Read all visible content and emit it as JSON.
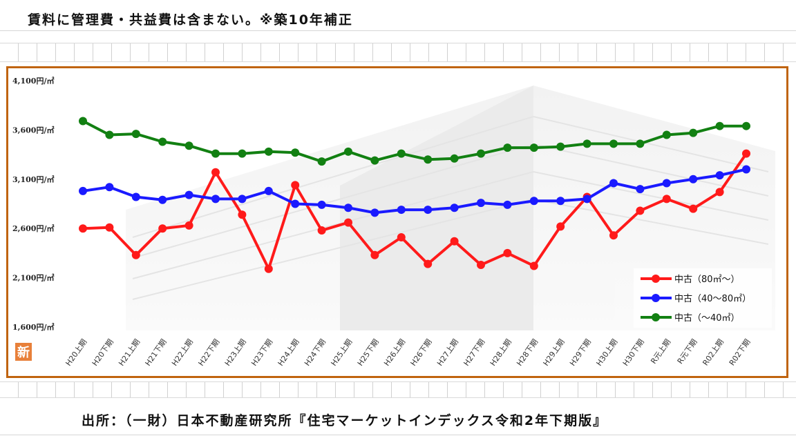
{
  "header": {
    "note": "賃料に管理費・共益費は含まない。※築10年補正"
  },
  "footer": {
    "source": "出所：（一財）日本不動産研究所『住宅マーケットインデックス令和2年下期版』"
  },
  "badge": {
    "text": "新"
  },
  "colors": {
    "frame": "#c0640e",
    "series": [
      "#ff1a1a",
      "#1a1aff",
      "#128012"
    ]
  },
  "chart_data": {
    "type": "line",
    "title": "",
    "xlabel": "",
    "ylabel": "",
    "ylim": [
      1600,
      4100
    ],
    "yticks": [
      {
        "value": 4100,
        "label": "4,100円/㎡"
      },
      {
        "value": 3600,
        "label": "3,600円/㎡"
      },
      {
        "value": 3100,
        "label": "3,100円/㎡"
      },
      {
        "value": 2600,
        "label": "2,600円/㎡"
      },
      {
        "value": 2100,
        "label": "2,100円/㎡"
      },
      {
        "value": 1600,
        "label": "1,600円/㎡"
      }
    ],
    "categories": [
      "H20上期",
      "H20下期",
      "H21上期",
      "H21下期",
      "H22上期",
      "H22下期",
      "H23上期",
      "H23下期",
      "H24上期",
      "H24下期",
      "H25上期",
      "H25下期",
      "H26上期",
      "H26下期",
      "H27上期",
      "H27下期",
      "H28上期",
      "H28下期",
      "H29上期",
      "H29下期",
      "H30上期",
      "H30下期",
      "R元上期",
      "R元下期",
      "R02上期",
      "R02下期"
    ],
    "series": [
      {
        "name": "中古（80㎡～）",
        "color": "#ff1a1a",
        "values": [
          2600,
          2610,
          2330,
          2600,
          2630,
          3170,
          2740,
          2190,
          3040,
          2580,
          2660,
          2330,
          2510,
          2240,
          2470,
          2230,
          2350,
          2220,
          2620,
          2920,
          2530,
          2780,
          2900,
          2800,
          2970,
          3360
        ]
      },
      {
        "name": "中古（40～80㎡）",
        "color": "#1a1aff",
        "values": [
          2980,
          3020,
          2920,
          2890,
          2940,
          2900,
          2900,
          2980,
          2850,
          2840,
          2810,
          2760,
          2790,
          2790,
          2810,
          2860,
          2840,
          2880,
          2880,
          2900,
          3060,
          3000,
          3060,
          3100,
          3140,
          3200
        ]
      },
      {
        "name": "中古（～40㎡）",
        "color": "#128012",
        "values": [
          3690,
          3550,
          3560,
          3480,
          3440,
          3360,
          3360,
          3380,
          3370,
          3280,
          3380,
          3290,
          3360,
          3300,
          3310,
          3360,
          3420,
          3420,
          3430,
          3460,
          3460,
          3460,
          3550,
          3570,
          3640,
          3640
        ]
      }
    ],
    "legend": "bottom-right",
    "grid": false
  }
}
